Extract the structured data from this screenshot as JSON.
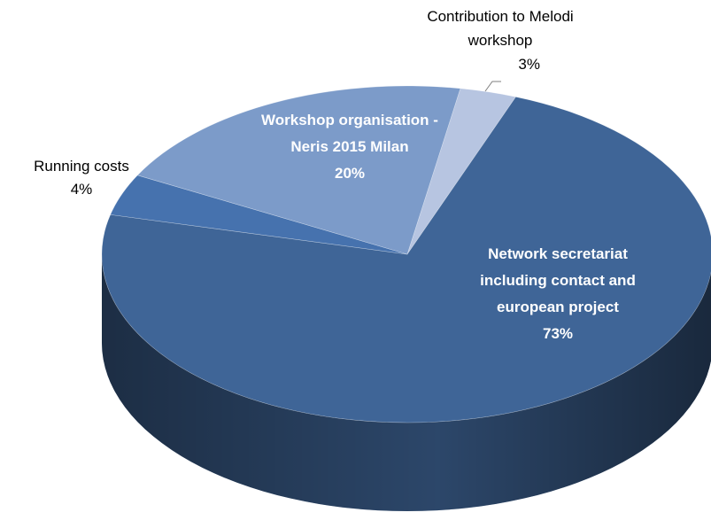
{
  "chart_data": {
    "type": "pie3d",
    "categories": [
      "Contribution to Melodi workshop",
      "Network secretariat including contact and european project",
      "Running costs",
      "Workshop organisation - Neris 2015 Milan"
    ],
    "values": [
      3,
      73,
      4,
      20
    ],
    "value_labels": [
      "3%",
      "73%",
      "4%",
      "20%"
    ],
    "colors": [
      "#b7c5e1",
      "#3f6597",
      "#4672ae",
      "#7c9bc9"
    ]
  }
}
